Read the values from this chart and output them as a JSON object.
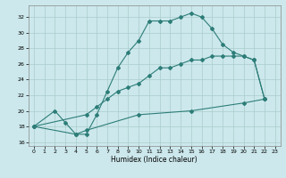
{
  "title": "",
  "xlabel": "Humidex (Indice chaleur)",
  "bg_color": "#cce8ec",
  "grid_color": "#aacccc",
  "line_color": "#2d7d78",
  "xlim": [
    -0.5,
    23.5
  ],
  "ylim": [
    15.5,
    33.5
  ],
  "xticks": [
    0,
    1,
    2,
    3,
    4,
    5,
    6,
    7,
    8,
    9,
    10,
    11,
    12,
    13,
    14,
    15,
    16,
    17,
    18,
    19,
    20,
    21,
    22,
    23
  ],
  "yticks": [
    16,
    18,
    20,
    22,
    24,
    26,
    28,
    30,
    32
  ],
  "c1x": [
    0,
    2,
    3,
    4,
    5,
    6,
    7,
    8,
    9,
    10,
    11,
    12,
    13,
    14,
    15,
    16,
    17,
    18,
    19,
    20,
    21,
    22
  ],
  "c1y": [
    18,
    20,
    18.5,
    17.0,
    17.0,
    19.5,
    22.5,
    25.5,
    27.5,
    29.0,
    31.5,
    31.5,
    31.5,
    32.0,
    32.5,
    32.0,
    30.5,
    28.5,
    27.5,
    27.0,
    26.5,
    21.5
  ],
  "c2x": [
    0,
    5,
    6,
    7,
    8,
    9,
    10,
    11,
    12,
    13,
    14,
    15,
    16,
    17,
    18,
    19,
    20,
    21,
    22
  ],
  "c2y": [
    18,
    19.5,
    20.5,
    21.5,
    22.5,
    23.0,
    23.5,
    24.5,
    25.5,
    25.5,
    26.0,
    26.5,
    26.5,
    27.0,
    27.0,
    27.0,
    27.0,
    26.5,
    21.5
  ],
  "c3x": [
    0,
    4,
    5,
    10,
    15,
    20,
    22
  ],
  "c3y": [
    18,
    17.0,
    17.5,
    19.5,
    20.0,
    21.0,
    21.5
  ]
}
